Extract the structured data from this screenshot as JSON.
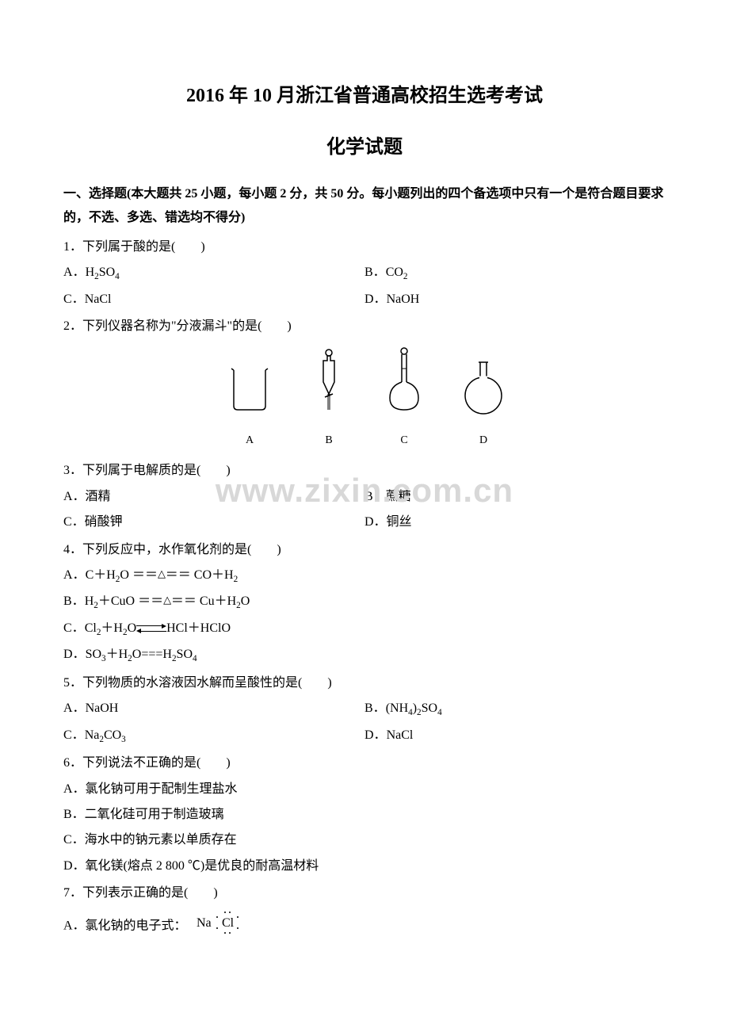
{
  "title": "2016 年 10 月浙江省普通高校招生选考考试",
  "title_fontsize": 24,
  "subtitle": "化学试题",
  "subtitle_fontsize": 24,
  "body_fontsize": 16,
  "watermark": {
    "text": "www.zixin.com.cn",
    "fontsize": 42
  },
  "section_header": "一、选择题(本大题共 25 小题，每小题 2 分，共 50 分。每小题列出的四个备选项中只有一个是符合题目要求的，不选、多选、错选均不得分)",
  "q1": {
    "stem": "1．下列属于酸的是(　　)",
    "A_prefix": "A．",
    "A_html": "H<span class='sub'>2</span>SO<span class='sub'>4</span>",
    "B_prefix": "B．",
    "B_html": "CO<span class='sub'>2</span>",
    "C_prefix": "C．",
    "C_html": "NaCl",
    "D_prefix": "D．",
    "D_html": "NaOH"
  },
  "q2": {
    "stem": "2．下列仪器名称为\"分液漏斗\"的是(　　)",
    "labels": {
      "A": "A",
      "B": "B",
      "C": "C",
      "D": "D"
    }
  },
  "q3": {
    "stem": "3．下列属于电解质的是(　　)",
    "A": "A．酒精",
    "B": "B．蔗糖",
    "C": "C．硝酸钾",
    "D": "D．铜丝"
  },
  "q4": {
    "stem": "4．下列反应中，水作氧化剂的是(　　)",
    "A_prefix": "A．",
    "A_html": "C＋H<span class='sub'>2</span>O ＝＝<span class='triangle'>△</span>＝＝ CO＋H<span class='sub'>2</span>",
    "B_prefix": "B．",
    "B_html": "H<span class='sub'>2</span>＋CuO ＝＝<span class='triangle'>△</span>＝＝ Cu＋H<span class='sub'>2</span>O",
    "C_prefix": "C．",
    "C_left": "Cl<span class='sub'>2</span>＋H<span class='sub'>2</span>O",
    "C_right": "HCl＋HClO",
    "D_prefix": "D．",
    "D_html": "SO<span class='sub'>3</span>＋H<span class='sub'>2</span>O===H<span class='sub'>2</span>SO<span class='sub'>4</span>"
  },
  "q5": {
    "stem": "5．下列物质的水溶液因水解而呈酸性的是(　　)",
    "A_prefix": "A．",
    "A_html": "NaOH",
    "B_prefix": "B．",
    "B_html": "(NH<span class='sub'>4</span>)<span class='sub'>2</span>SO<span class='sub'>4</span>",
    "C_prefix": "C．",
    "C_html": "Na<span class='sub'>2</span>CO<span class='sub'>3</span>",
    "D_prefix": "D．",
    "D_html": "NaCl"
  },
  "q6": {
    "stem": "6．下列说法不正确的是(　　)",
    "A": "A．氯化钠可用于配制生理盐水",
    "B": "B．二氧化硅可用于制造玻璃",
    "C": "C．海水中的钠元素以单质存在",
    "D": "D．氧化镁(熔点 2 800 ℃)是优良的耐高温材料"
  },
  "q7": {
    "stem": "7．下列表示正确的是(　　)",
    "A_text": "A．氯化钠的电子式："
  },
  "apparatus_svg": {
    "width": 70,
    "height": 80,
    "stroke": "#000000",
    "fill": "none"
  }
}
